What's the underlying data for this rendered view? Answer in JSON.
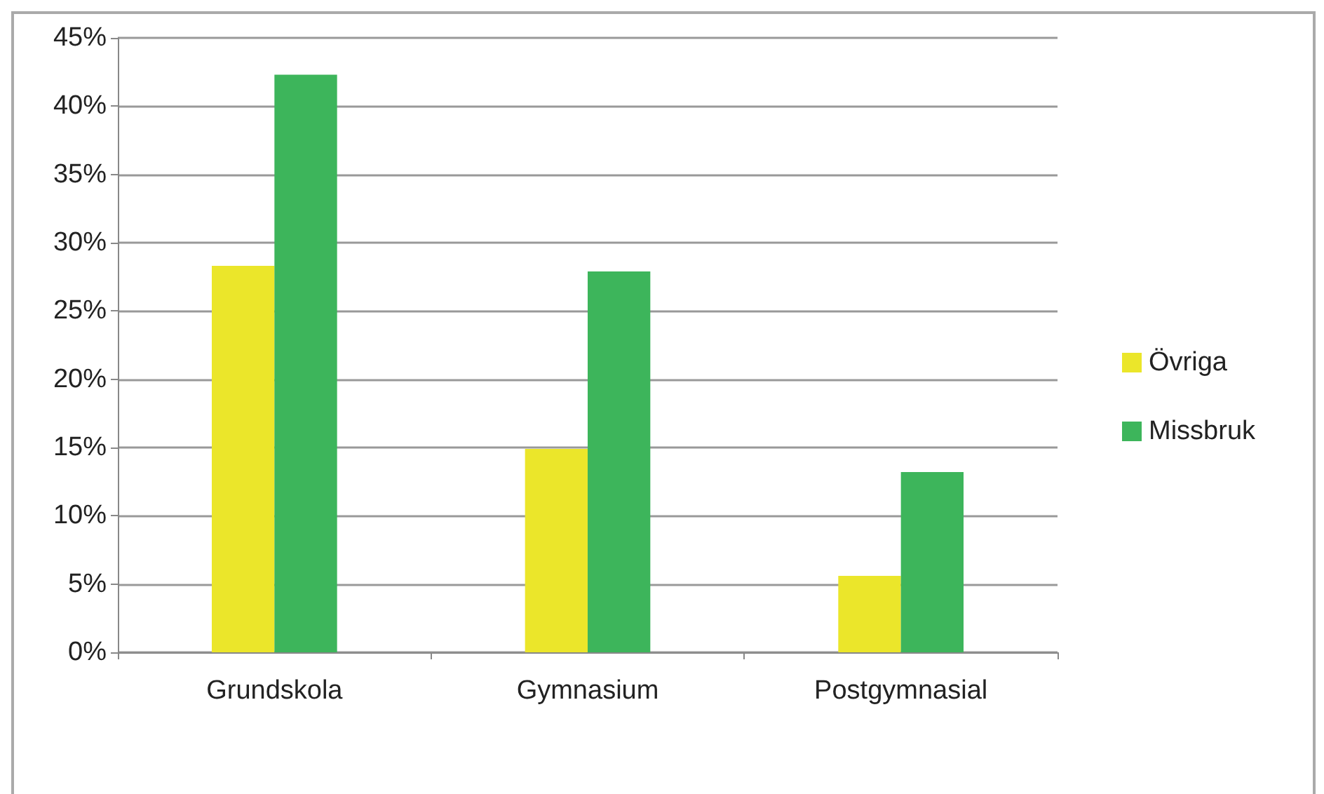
{
  "chart_data": {
    "type": "bar",
    "categories": [
      "Grundskola",
      "Gymnasium",
      "Postgymnasial"
    ],
    "series": [
      {
        "name": "Övriga",
        "color": "#ebe62a",
        "values": [
          28.3,
          14.9,
          5.6
        ]
      },
      {
        "name": "Missbruk",
        "color": "#3db55b",
        "values": [
          42.3,
          27.9,
          13.2
        ]
      }
    ],
    "ylim": [
      0,
      45
    ],
    "yticks": [
      {
        "value": 0,
        "label": "0%"
      },
      {
        "value": 5,
        "label": "5%"
      },
      {
        "value": 10,
        "label": "10%"
      },
      {
        "value": 15,
        "label": "15%"
      },
      {
        "value": 20,
        "label": "20%"
      },
      {
        "value": 25,
        "label": "25%"
      },
      {
        "value": 30,
        "label": "30%"
      },
      {
        "value": 35,
        "label": "35%"
      },
      {
        "value": 40,
        "label": "40%"
      },
      {
        "value": 45,
        "label": "45%"
      }
    ],
    "grid": "y",
    "legend": "right"
  }
}
